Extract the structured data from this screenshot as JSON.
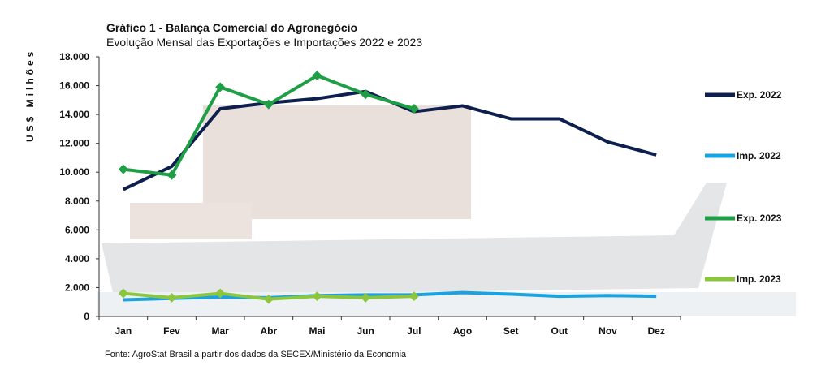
{
  "title": "Gráfico 1 - Balança Comercial do Agronegócio",
  "subtitle": "Evolução  Mensal das Exportações  e Importações  2022  e 2023",
  "source": "Fonte: AgroStat Brasil a partir dos dados da SECEX/Ministério  da Economia",
  "chart_data": {
    "type": "line",
    "title": "Gráfico 1 - Balança Comercial do Agronegócio",
    "subtitle": "Evolução  Mensal das Exportações  e Importações  2022  e 2023",
    "xlabel": "",
    "ylabel": "US$ Milhões",
    "categories": [
      "Jan",
      "Fev",
      "Mar",
      "Abr",
      "Mai",
      "Jun",
      "Jul",
      "Ago",
      "Set",
      "Out",
      "Nov",
      "Dez"
    ],
    "yticks": [
      "0",
      "2.000",
      "4.000",
      "6.000",
      "8.000",
      "10.000",
      "12.000",
      "14.000",
      "16.000",
      "18.000"
    ],
    "ylim": [
      0,
      18000
    ],
    "grid": false,
    "legend_position": "right",
    "series": [
      {
        "name": "Exp. 2022",
        "color": "#0d1f4e",
        "width": 4,
        "values": [
          8800,
          10400,
          14400,
          14800,
          15100,
          15600,
          14200,
          14600,
          13700,
          13700,
          12100,
          11200
        ]
      },
      {
        "name": "Imp. 2022",
        "color": "#1aa3e0",
        "width": 4,
        "values": [
          1150,
          1250,
          1350,
          1300,
          1450,
          1500,
          1500,
          1650,
          1550,
          1400,
          1450,
          1400
        ]
      },
      {
        "name": "Exp. 2023",
        "color": "#1e9e45",
        "width": 4,
        "markers": true,
        "values": [
          10200,
          9800,
          15900,
          14700,
          16700,
          15400,
          14400,
          null,
          null,
          null,
          null,
          null
        ]
      },
      {
        "name": "Imp. 2023",
        "color": "#8cc63f",
        "width": 4,
        "markers": true,
        "values": [
          1600,
          1300,
          1600,
          1200,
          1400,
          1300,
          1400,
          null,
          null,
          null,
          null,
          null
        ]
      }
    ]
  }
}
